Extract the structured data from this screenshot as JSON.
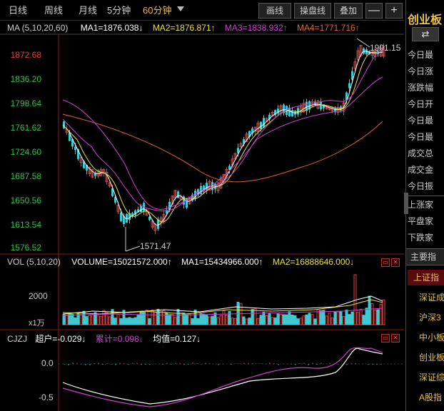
{
  "toolbar": {
    "periods": [
      "日线",
      "周线",
      "月线",
      "5分钟",
      "60分钟"
    ],
    "active_period": "60分钟",
    "dropdown_icon": "triangle-down-icon",
    "buttons": [
      "画线",
      "操盘线",
      "叠加"
    ],
    "minus": "—",
    "plus": "+"
  },
  "ma_legend": {
    "label": "MA (5,10,20,60)",
    "ma1": "MA1=1876.038↓",
    "ma2": "MA2=1876.871↑",
    "ma3": "MA3=1838.932↑",
    "ma4": "MA4=1771.716↑"
  },
  "price_axis": [
    "1872.68",
    "1836.20",
    "1798.64",
    "1761.62",
    "1724.60",
    "1687.58",
    "1650.56",
    "1613.54",
    "1576.52"
  ],
  "annotations": {
    "low": "1571.47",
    "high": "1901.15"
  },
  "vol_legend": {
    "label": "VOL (5,10,20)",
    "volume": "VOLUME=15021572.000↑",
    "ma1": "MA1=15434966.000↑",
    "ma2": "MA2=16888646.000↓"
  },
  "vol_axis": {
    "tick": "2000",
    "unit": "x1万"
  },
  "cjzj_legend": {
    "label": "CJZJ",
    "chaohu": "超户=-0.029↓",
    "leiji": "累计=0.098↓",
    "junzhi": "均值=0.127↓"
  },
  "cjzj_axis": [
    "0.0",
    "-0.5"
  ],
  "right_panel": {
    "title": "创业板",
    "switch_icon": "swap-arrows-icon",
    "items": [
      "今日最",
      "今日涨",
      "涨跌幅",
      "今日开",
      "今日最",
      "今日最",
      "成交总",
      "成交金",
      "今日振",
      "上涨家",
      "平盘家",
      "下跌家"
    ],
    "section": "主要指",
    "index_items": [
      "上证指",
      "深证成",
      "沪深3",
      "中小板",
      "创业板",
      "深证综",
      "A股指"
    ]
  },
  "colors": {
    "up": "#e04040",
    "down": "#40c8d0",
    "ma1": "#ffffff",
    "ma2": "#e8e040",
    "ma3": "#d040d0",
    "ma4": "#e06040"
  }
}
